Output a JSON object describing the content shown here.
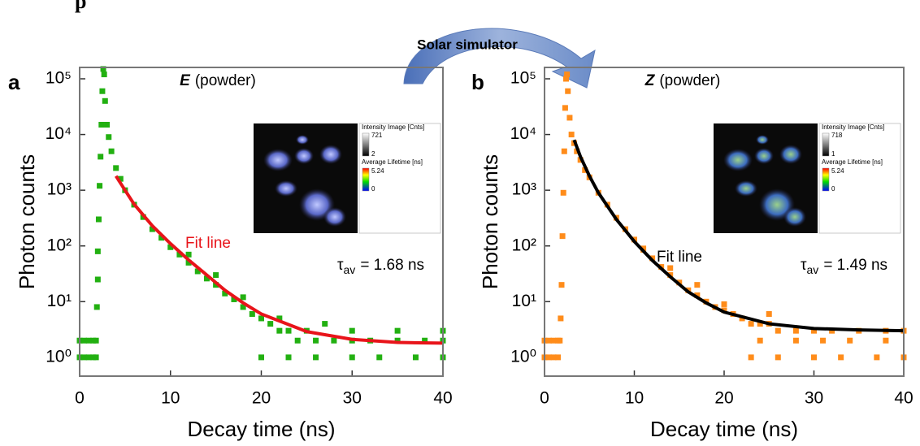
{
  "heading_fragment": "p",
  "arrow_label": "Solar simulator",
  "chart_data": [
    {
      "type": "scatter",
      "panel": "a",
      "title_letter": "E",
      "title": "(powder)",
      "xlabel": "Decay time (ns)",
      "ylabel": "Photon counts",
      "log_y": true,
      "xlim": [
        0,
        40
      ],
      "xticks": [
        0,
        10,
        20,
        30,
        40
      ],
      "ylim": [
        0.46,
        160000
      ],
      "yticks": [
        {
          "value": 1,
          "label": "10⁰"
        },
        {
          "value": 10,
          "label": "10¹"
        },
        {
          "value": 100,
          "label": "10²"
        },
        {
          "value": 1000,
          "label": "10³"
        },
        {
          "value": 10000,
          "label": "10⁴"
        },
        {
          "value": 100000,
          "label": "10⁵"
        }
      ],
      "annotation": {
        "symbol": "τ",
        "subscript": "av",
        "text": "= 1.68 ns"
      },
      "inset": {
        "intensity_label": "Intensity Image [Cnts]",
        "intensity_max": "721",
        "intensity_min": "2",
        "lifetime_label": "Average Lifetime [ns]",
        "lifetime_max": "5.24",
        "lifetime_min": "0"
      },
      "series": [
        {
          "kind": "markers",
          "color": "#22b011",
          "x": [
            0,
            0.5,
            1,
            1.5,
            0,
            0.5,
            1,
            1.5,
            1.8,
            1.8,
            1.9,
            2.0,
            2.0,
            2.1,
            2.2,
            2.3,
            2.4,
            2.5,
            2.6,
            2.7,
            2.8,
            3.0,
            3.2,
            3.5,
            4,
            4.5,
            5,
            6,
            7,
            8,
            9,
            10,
            11,
            12,
            13,
            14,
            15,
            16,
            17,
            18,
            19,
            20,
            21,
            22,
            23,
            24,
            26,
            28,
            30,
            32,
            35,
            38,
            40,
            20,
            23,
            26,
            30,
            33,
            37,
            40,
            25,
            30,
            35,
            40,
            22,
            27,
            18,
            15,
            12
          ],
          "values": [
            1,
            1,
            1,
            1,
            2,
            2,
            2,
            2,
            1,
            2,
            8,
            25,
            80,
            300,
            1200,
            4000,
            15000,
            60000,
            150000,
            120000,
            40000,
            15000,
            9000,
            5000,
            2500,
            1600,
            1000,
            550,
            330,
            200,
            140,
            95,
            70,
            50,
            35,
            26,
            20,
            14,
            11,
            8,
            6,
            5,
            4,
            3,
            3,
            2,
            2,
            2,
            2,
            2,
            2,
            2,
            2,
            1,
            1,
            1,
            1,
            1,
            1,
            1,
            3,
            3,
            3,
            3,
            5,
            4,
            12,
            30,
            70
          ]
        },
        {
          "kind": "line",
          "name": "Fit line",
          "color": "#e8141a",
          "x": [
            4,
            5,
            6,
            8,
            10,
            12,
            14,
            16,
            18,
            20,
            25,
            30,
            35,
            40
          ],
          "values": [
            1800,
            1000,
            560,
            230,
            110,
            56,
            30,
            16,
            9.5,
            6,
            2.9,
            2.1,
            1.85,
            1.8
          ]
        }
      ]
    },
    {
      "type": "scatter",
      "panel": "b",
      "title_letter": "Z",
      "title": "(powder)",
      "xlabel": "Decay time (ns)",
      "ylabel": "Photon counts",
      "log_y": true,
      "xlim": [
        0,
        40
      ],
      "xticks": [
        0,
        10,
        20,
        30,
        40
      ],
      "ylim": [
        0.46,
        160000
      ],
      "yticks": [
        {
          "value": 1,
          "label": "10⁰"
        },
        {
          "value": 10,
          "label": "10¹"
        },
        {
          "value": 100,
          "label": "10²"
        },
        {
          "value": 1000,
          "label": "10³"
        },
        {
          "value": 10000,
          "label": "10⁴"
        },
        {
          "value": 100000,
          "label": "10⁵"
        }
      ],
      "annotation": {
        "symbol": "τ",
        "subscript": "av",
        "text": "= 1.49 ns"
      },
      "inset": {
        "intensity_label": "Intensity Image [Cnts]",
        "intensity_max": "718",
        "intensity_min": "1",
        "lifetime_label": "Average Lifetime [ns]",
        "lifetime_max": "5.24",
        "lifetime_min": "0"
      },
      "series": [
        {
          "kind": "markers",
          "color": "#ff8c1a",
          "x": [
            0,
            0.5,
            1,
            1.5,
            0,
            0.5,
            1,
            1.5,
            1.7,
            1.8,
            1.9,
            2.0,
            2.1,
            2.2,
            2.3,
            2.4,
            2.5,
            2.6,
            2.8,
            3.0,
            3.3,
            3.6,
            4,
            4.5,
            5,
            6,
            7,
            8,
            9,
            10,
            11,
            12,
            13,
            14,
            15,
            16,
            17,
            18,
            19,
            20,
            21,
            22,
            23,
            24,
            25,
            26,
            28,
            30,
            32,
            35,
            38,
            40,
            23,
            26,
            30,
            33,
            37,
            40,
            24,
            28,
            31,
            34,
            38,
            20,
            25,
            17,
            14,
            11
          ],
          "values": [
            1,
            1,
            1,
            1,
            2,
            2,
            2,
            2,
            2,
            5,
            20,
            150,
            900,
            5000,
            30000,
            100000,
            120000,
            60000,
            20000,
            10000,
            7000,
            5000,
            3500,
            2300,
            1700,
            900,
            550,
            320,
            200,
            130,
            85,
            60,
            42,
            30,
            22,
            16,
            13,
            10,
            8,
            7,
            6,
            5,
            4,
            4,
            4,
            3,
            3,
            3,
            3,
            3,
            3,
            3,
            1,
            1,
            1,
            1,
            1,
            1,
            2,
            2,
            2,
            2,
            2,
            9,
            6,
            20,
            40,
            90
          ]
        },
        {
          "kind": "line",
          "name": "Fit line",
          "color": "#000000",
          "x": [
            3.3,
            4,
            5,
            6,
            8,
            10,
            12,
            14,
            16,
            18,
            20,
            25,
            30,
            35,
            40
          ],
          "values": [
            8000,
            4000,
            1800,
            900,
            300,
            120,
            55,
            28,
            15,
            9.5,
            6.5,
            4,
            3.3,
            3.1,
            3
          ]
        }
      ]
    }
  ]
}
